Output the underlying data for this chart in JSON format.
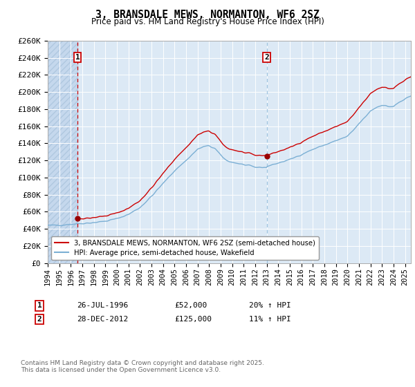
{
  "title": "3, BRANSDALE MEWS, NORMANTON, WF6 2SZ",
  "subtitle": "Price paid vs. HM Land Registry's House Price Index (HPI)",
  "legend_line1": "3, BRANSDALE MEWS, NORMANTON, WF6 2SZ (semi-detached house)",
  "legend_line2": "HPI: Average price, semi-detached house, Wakefield",
  "sale1_date": "26-JUL-1996",
  "sale1_price": 52000,
  "sale1_hpi": "20%",
  "sale1_year": 1996.58,
  "sale2_date": "28-DEC-2012",
  "sale2_price": 125000,
  "sale2_hpi": "11%",
  "sale2_year": 2012.99,
  "footnote": "Contains HM Land Registry data © Crown copyright and database right 2025.\nThis data is licensed under the Open Government Licence v3.0.",
  "ylim": [
    0,
    260000
  ],
  "yticks": [
    0,
    20000,
    40000,
    60000,
    80000,
    100000,
    120000,
    140000,
    160000,
    180000,
    200000,
    220000,
    240000,
    260000
  ],
  "background_color": "#dce9f5",
  "hatch_color": "#c5d8ed",
  "red_line_color": "#cc0000",
  "blue_line_color": "#7bafd4",
  "red_dash_color": "#cc0000",
  "blue_dash_color": "#7bafd4",
  "marker_color": "#990000",
  "grid_color": "#ffffff",
  "xmin": 1994.0,
  "xmax": 2025.5,
  "xticks": [
    1994,
    1995,
    1996,
    1997,
    1998,
    1999,
    2000,
    2001,
    2002,
    2003,
    2004,
    2005,
    2006,
    2007,
    2008,
    2009,
    2010,
    2011,
    2012,
    2013,
    2014,
    2015,
    2016,
    2017,
    2018,
    2019,
    2020,
    2021,
    2022,
    2023,
    2024,
    2025
  ]
}
